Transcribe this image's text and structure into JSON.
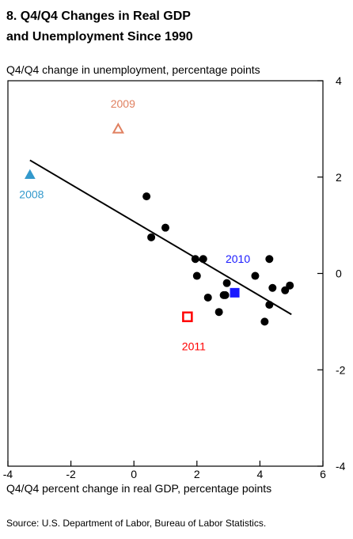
{
  "title": {
    "line1": "8.  Q4/Q4 Changes in Real GDP",
    "line2": "and Unemployment Since 1990"
  },
  "source": "Source: U.S. Department of Labor, Bureau of Labor Statistics.",
  "chart_data": {
    "type": "scatter",
    "ylabel": "Q4/Q4 change in unemployment, percentage points",
    "xlabel": "Q4/Q4 percent change in real GDP, percentage points",
    "xlim": [
      -4,
      6
    ],
    "ylim": [
      -4,
      4
    ],
    "x_ticks": [
      -4,
      -2,
      0,
      2,
      4,
      6
    ],
    "y_ticks": [
      -4,
      -2,
      0,
      2,
      4
    ],
    "x_tick_labels": [
      "-4",
      "-2",
      "0",
      "2",
      "4",
      "6"
    ],
    "y_tick_labels": [
      "-4",
      "-2",
      "0",
      "2",
      "4"
    ],
    "grid": false,
    "points": [
      {
        "x": 0.4,
        "y": 1.6
      },
      {
        "x": 0.55,
        "y": 0.75
      },
      {
        "x": 1.0,
        "y": 0.95
      },
      {
        "x": 1.95,
        "y": 0.3
      },
      {
        "x": 2.2,
        "y": 0.3
      },
      {
        "x": 2.0,
        "y": -0.05
      },
      {
        "x": 2.35,
        "y": -0.5
      },
      {
        "x": 2.7,
        "y": -0.8
      },
      {
        "x": 2.85,
        "y": -0.45
      },
      {
        "x": 2.9,
        "y": -0.45
      },
      {
        "x": 2.95,
        "y": -0.2
      },
      {
        "x": 3.85,
        "y": -0.05
      },
      {
        "x": 4.15,
        "y": -1.0
      },
      {
        "x": 4.3,
        "y": 0.3
      },
      {
        "x": 4.3,
        "y": -0.65
      },
      {
        "x": 4.4,
        "y": -0.3
      },
      {
        "x": 4.8,
        "y": -0.35
      },
      {
        "x": 4.95,
        "y": -0.25
      }
    ],
    "highlighted": [
      {
        "label": "2008",
        "x": -3.3,
        "y": 2.05,
        "marker": "triangle-filled",
        "color": "#3399cc"
      },
      {
        "label": "2009",
        "x": -0.5,
        "y": 3.0,
        "marker": "triangle-open",
        "color": "#e08060"
      },
      {
        "label": "2010",
        "x": 3.2,
        "y": -0.4,
        "marker": "square-filled",
        "color": "#1a1aff"
      },
      {
        "label": "2011",
        "x": 1.7,
        "y": -0.9,
        "marker": "square-open",
        "color": "#ff0000"
      }
    ],
    "trend_line": {
      "x": [
        -3.3,
        5.0
      ],
      "y": [
        2.35,
        -0.85
      ]
    }
  }
}
